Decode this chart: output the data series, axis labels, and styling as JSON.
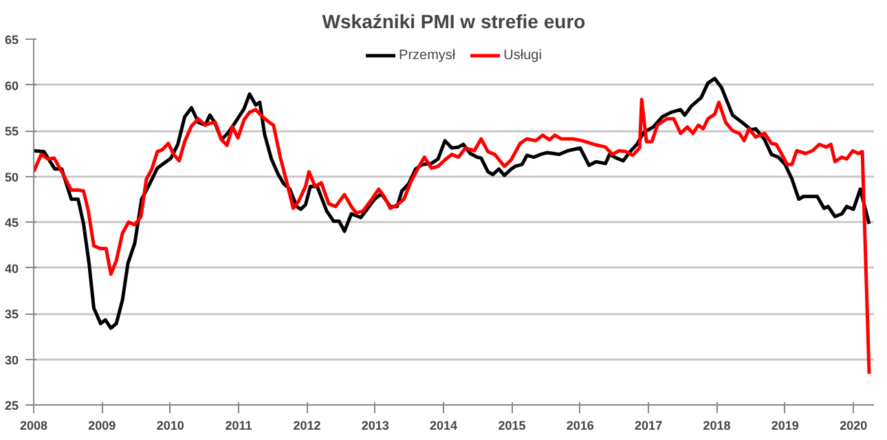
{
  "chart_data": {
    "type": "line",
    "title": "Wskaźniki PMI w strefie euro",
    "xlim": [
      2008,
      2020.3
    ],
    "xticks": [
      2008,
      2009,
      2010,
      2011,
      2012,
      2013,
      2014,
      2015,
      2016,
      2017,
      2018,
      2019,
      2020
    ],
    "ylim": [
      25,
      65
    ],
    "yticks": [
      25,
      30,
      35,
      40,
      45,
      50,
      55,
      60,
      65
    ],
    "grid": "y",
    "legend": "top",
    "marker": "none",
    "line_style": "solid",
    "series": [
      {
        "name": "Przemysł",
        "color": "#000000",
        "x": [
          2008.0,
          2008.15,
          2008.31,
          2008.41,
          2008.55,
          2008.65,
          2008.73,
          2008.81,
          2008.88,
          2008.98,
          2009.05,
          2009.13,
          2009.21,
          2009.3,
          2009.38,
          2009.48,
          2009.58,
          2009.68,
          2009.81,
          2010.01,
          2010.11,
          2010.21,
          2010.31,
          2010.41,
          2010.51,
          2010.58,
          2010.65,
          2010.75,
          2010.85,
          2010.95,
          2011.08,
          2011.16,
          2011.25,
          2011.31,
          2011.38,
          2011.48,
          2011.58,
          2011.66,
          2011.75,
          2011.85,
          2011.91,
          2011.98,
          2012.05,
          2012.15,
          2012.29,
          2012.39,
          2012.47,
          2012.55,
          2012.65,
          2012.79,
          2012.89,
          2012.99,
          2013.09,
          2013.22,
          2013.32,
          2013.39,
          2013.49,
          2013.59,
          2013.69,
          2013.82,
          2013.92,
          2014.02,
          2014.12,
          2014.22,
          2014.29,
          2014.39,
          2014.49,
          2014.55,
          2014.65,
          2014.72,
          2014.81,
          2014.89,
          2014.99,
          2015.05,
          2015.15,
          2015.22,
          2015.32,
          2015.42,
          2015.52,
          2015.69,
          2015.82,
          2016.0,
          2016.13,
          2016.23,
          2016.37,
          2016.43,
          2016.53,
          2016.63,
          2016.73,
          2016.83,
          2016.93,
          2017.07,
          2017.2,
          2017.33,
          2017.47,
          2017.53,
          2017.63,
          2017.77,
          2017.87,
          2017.97,
          2018.07,
          2018.23,
          2018.37,
          2018.5,
          2018.57,
          2018.7,
          2018.8,
          2018.9,
          2019.0,
          2019.1,
          2019.2,
          2019.27,
          2019.37,
          2019.47,
          2019.57,
          2019.63,
          2019.73,
          2019.83,
          2019.9,
          2020.0,
          2020.1,
          2020.23
        ],
        "values": [
          52.8,
          52.7,
          50.8,
          50.8,
          47.5,
          47.5,
          44.8,
          40.5,
          35.6,
          33.9,
          34.3,
          33.4,
          33.9,
          36.5,
          40.5,
          42.7,
          47.5,
          48.9,
          50.9,
          52.0,
          53.5,
          56.5,
          57.5,
          55.9,
          55.6,
          56.7,
          55.9,
          54.0,
          54.8,
          55.9,
          57.4,
          59.0,
          57.8,
          58.1,
          54.6,
          51.9,
          50.2,
          49.2,
          48.6,
          46.7,
          46.4,
          46.9,
          48.9,
          48.9,
          46.2,
          45.1,
          45.1,
          44.0,
          45.9,
          45.5,
          46.5,
          47.5,
          48.1,
          46.7,
          46.7,
          48.4,
          49.2,
          50.8,
          51.3,
          51.4,
          51.9,
          53.9,
          53.1,
          53.2,
          53.5,
          52.5,
          52.1,
          52.0,
          50.5,
          50.2,
          50.8,
          50.1,
          50.8,
          51.1,
          51.3,
          52.3,
          52.1,
          52.4,
          52.6,
          52.4,
          52.8,
          53.1,
          51.2,
          51.6,
          51.4,
          52.4,
          52.0,
          51.7,
          52.7,
          53.5,
          54.8,
          55.4,
          56.5,
          57.0,
          57.3,
          56.7,
          57.7,
          58.6,
          60.2,
          60.7,
          59.7,
          56.7,
          55.9,
          55.1,
          55.2,
          54.0,
          52.4,
          52.1,
          51.3,
          49.7,
          47.5,
          47.8,
          47.8,
          47.8,
          46.5,
          46.7,
          45.6,
          45.9,
          46.7,
          46.4,
          48.6,
          44.8
        ]
      },
      {
        "name": "Usługi",
        "color": "#ff0000",
        "x": [
          2008.0,
          2008.11,
          2008.21,
          2008.3,
          2008.41,
          2008.55,
          2008.65,
          2008.73,
          2008.8,
          2008.88,
          2008.98,
          2009.06,
          2009.13,
          2009.21,
          2009.3,
          2009.39,
          2009.48,
          2009.57,
          2009.65,
          2009.73,
          2009.81,
          2009.88,
          2009.97,
          2010.05,
          2010.13,
          2010.21,
          2010.31,
          2010.41,
          2010.51,
          2010.58,
          2010.66,
          2010.75,
          2010.83,
          2010.91,
          2010.99,
          2011.08,
          2011.16,
          2011.25,
          2011.35,
          2011.45,
          2011.51,
          2011.61,
          2011.71,
          2011.8,
          2011.88,
          2011.98,
          2012.03,
          2012.12,
          2012.21,
          2012.32,
          2012.42,
          2012.55,
          2012.65,
          2012.72,
          2012.82,
          2012.95,
          2013.05,
          2013.13,
          2013.22,
          2013.32,
          2013.42,
          2013.52,
          2013.62,
          2013.72,
          2013.82,
          2013.92,
          2014.02,
          2014.12,
          2014.22,
          2014.32,
          2014.45,
          2014.55,
          2014.65,
          2014.75,
          2014.89,
          2014.99,
          2015.12,
          2015.22,
          2015.35,
          2015.45,
          2015.55,
          2015.63,
          2015.72,
          2015.89,
          2016.03,
          2016.2,
          2016.37,
          2016.47,
          2016.57,
          2016.67,
          2016.77,
          2016.87,
          2016.9,
          2016.97,
          2017.05,
          2017.13,
          2017.27,
          2017.37,
          2017.47,
          2017.57,
          2017.65,
          2017.73,
          2017.8,
          2017.87,
          2017.97,
          2018.03,
          2018.13,
          2018.23,
          2018.33,
          2018.4,
          2018.47,
          2018.57,
          2018.7,
          2018.8,
          2018.87,
          2018.93,
          2019.03,
          2019.1,
          2019.17,
          2019.3,
          2019.4,
          2019.5,
          2019.6,
          2019.67,
          2019.73,
          2019.83,
          2019.9,
          2019.99,
          2020.07,
          2020.13,
          2020.23
        ],
        "values": [
          50.5,
          52.4,
          51.9,
          52.0,
          50.5,
          48.5,
          48.5,
          48.4,
          46.2,
          42.4,
          42.1,
          42.1,
          39.3,
          40.8,
          43.8,
          45.0,
          44.7,
          45.6,
          49.7,
          50.8,
          52.7,
          52.9,
          53.6,
          52.4,
          51.7,
          53.8,
          55.5,
          56.3,
          55.6,
          55.8,
          55.9,
          54.0,
          53.4,
          55.4,
          54.2,
          56.2,
          57.0,
          57.3,
          56.5,
          55.9,
          55.6,
          52.1,
          49.2,
          46.5,
          47.3,
          48.9,
          50.5,
          48.9,
          49.3,
          47.0,
          46.7,
          48.0,
          46.7,
          46.0,
          46.2,
          47.5,
          48.6,
          47.8,
          46.5,
          46.9,
          47.5,
          49.4,
          50.8,
          52.1,
          50.9,
          51.1,
          51.8,
          52.4,
          52.1,
          53.1,
          52.8,
          54.1,
          52.7,
          52.4,
          51.1,
          51.8,
          53.6,
          54.1,
          53.9,
          54.5,
          54.0,
          54.5,
          54.1,
          54.1,
          53.9,
          53.5,
          53.2,
          52.4,
          52.8,
          52.7,
          52.3,
          53.1,
          58.4,
          53.8,
          53.8,
          55.6,
          56.3,
          56.3,
          54.7,
          55.4,
          54.7,
          55.6,
          55.2,
          56.3,
          56.8,
          58.1,
          55.9,
          55.0,
          54.7,
          53.9,
          55.2,
          54.3,
          54.7,
          53.6,
          53.5,
          52.7,
          51.3,
          51.3,
          52.8,
          52.5,
          52.8,
          53.5,
          53.2,
          53.5,
          51.6,
          52.1,
          51.9,
          52.8,
          52.5,
          52.7,
          28.4
        ]
      }
    ]
  }
}
